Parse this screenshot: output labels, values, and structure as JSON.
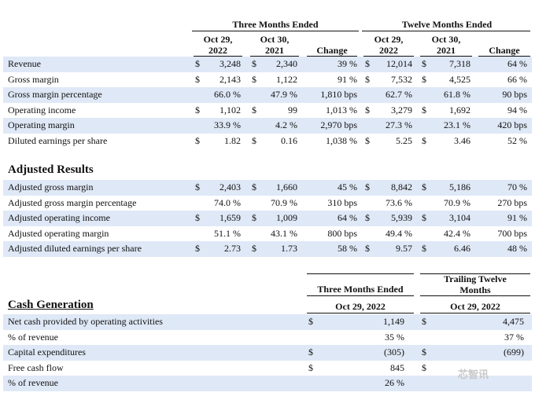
{
  "top_header": {
    "three_months": "Three Months Ended",
    "twelve_months": "Twelve Months Ended",
    "col_oct29_2022_a": [
      "Oct 29,",
      "2022"
    ],
    "col_oct30_2021_a": [
      "Oct 30,",
      "2021"
    ],
    "change": "Change",
    "col_oct29_2022_b": [
      "Oct 29,",
      "2022"
    ],
    "col_oct30_2021_b": [
      "Oct 30,",
      "2021"
    ]
  },
  "gaap_rows": [
    {
      "label": "Revenue",
      "q22_cur": "$",
      "q22": "3,248",
      "q21_cur": "$",
      "q21": "2,340",
      "qchg": "39 %",
      "y22_cur": "$",
      "y22": "12,014",
      "y21_cur": "$",
      "y21": "7,318",
      "ychg": "64 %",
      "shade": true
    },
    {
      "label": "Gross margin",
      "q22_cur": "$",
      "q22": "2,143",
      "q21_cur": "$",
      "q21": "1,122",
      "qchg": "91 %",
      "y22_cur": "$",
      "y22": "7,532",
      "y21_cur": "$",
      "y21": "4,525",
      "ychg": "66 %",
      "shade": false
    },
    {
      "label": "Gross margin percentage",
      "q22_cur": "",
      "q22": "66.0 %",
      "q21_cur": "",
      "q21": "47.9 %",
      "qchg": "1,810 bps",
      "y22_cur": "",
      "y22": "62.7 %",
      "y21_cur": "",
      "y21": "61.8 %",
      "ychg": "90 bps",
      "shade": true
    },
    {
      "label": "Operating income",
      "q22_cur": "$",
      "q22": "1,102",
      "q21_cur": "$",
      "q21": "99",
      "qchg": "1,013 %",
      "y22_cur": "$",
      "y22": "3,279",
      "y21_cur": "$",
      "y21": "1,692",
      "ychg": "94 %",
      "shade": false
    },
    {
      "label": "Operating margin",
      "q22_cur": "",
      "q22": "33.9 %",
      "q21_cur": "",
      "q21": "4.2 %",
      "qchg": "2,970 bps",
      "y22_cur": "",
      "y22": "27.3 %",
      "y21_cur": "",
      "y21": "23.1 %",
      "ychg": "420 bps",
      "shade": true
    },
    {
      "label": "Diluted earnings per share",
      "q22_cur": "$",
      "q22": "1.82",
      "q21_cur": "$",
      "q21": "0.16",
      "qchg": "1,038 %",
      "y22_cur": "$",
      "y22": "5.25",
      "y21_cur": "$",
      "y21": "3.46",
      "ychg": "52 %",
      "shade": false
    }
  ],
  "adjusted_title": "Adjusted Results",
  "adjusted_rows": [
    {
      "label": "Adjusted gross margin",
      "q22_cur": "$",
      "q22": "2,403",
      "q21_cur": "$",
      "q21": "1,660",
      "qchg": "45 %",
      "y22_cur": "$",
      "y22": "8,842",
      "y21_cur": "$",
      "y21": "5,186",
      "ychg": "70 %",
      "shade": true
    },
    {
      "label": "Adjusted gross margin percentage",
      "q22_cur": "",
      "q22": "74.0 %",
      "q21_cur": "",
      "q21": "70.9 %",
      "qchg": "310 bps",
      "y22_cur": "",
      "y22": "73.6 %",
      "y21_cur": "",
      "y21": "70.9 %",
      "ychg": "270 bps",
      "shade": false
    },
    {
      "label": "Adjusted operating income",
      "q22_cur": "$",
      "q22": "1,659",
      "q21_cur": "$",
      "q21": "1,009",
      "qchg": "64 %",
      "y22_cur": "$",
      "y22": "5,939",
      "y21_cur": "$",
      "y21": "3,104",
      "ychg": "91 %",
      "shade": true
    },
    {
      "label": "Adjusted operating margin",
      "q22_cur": "",
      "q22": "51.1 %",
      "q21_cur": "",
      "q21": "43.1 %",
      "qchg": "800 bps",
      "y22_cur": "",
      "y22": "49.4 %",
      "y21_cur": "",
      "y21": "42.4 %",
      "ychg": "700 bps",
      "shade": false
    },
    {
      "label": "Adjusted diluted earnings per share",
      "q22_cur": "$",
      "q22": "2.73",
      "q21_cur": "$",
      "q21": "1.73",
      "qchg": "58 %",
      "y22_cur": "$",
      "y22": "9.57",
      "y21_cur": "$",
      "y21": "6.46",
      "ychg": "48 %",
      "shade": true
    }
  ],
  "cash_header": {
    "three_months": "Three Months Ended",
    "ttm": [
      "Trailing Twelve",
      "Months"
    ],
    "date_a": "Oct 29, 2022",
    "date_b": "Oct 29, 2022"
  },
  "cash_title": "Cash Generation",
  "cash_rows": [
    {
      "label": "Net cash provided by operating activities",
      "a_cur": "$",
      "a": "1,149",
      "b_cur": "$",
      "b": "4,475",
      "shade": true
    },
    {
      "label": "% of revenue",
      "a_cur": "",
      "a": "35 %",
      "b_cur": "",
      "b": "37 %",
      "shade": false
    },
    {
      "label": "Capital expenditures",
      "a_cur": "$",
      "a": "(305)",
      "b_cur": "$",
      "b": "(699)",
      "shade": true
    },
    {
      "label": "Free cash flow",
      "a_cur": "$",
      "a": "845",
      "b_cur": "$",
      "b": "",
      "shade": false
    },
    {
      "label": "% of revenue",
      "a_cur": "",
      "a": "26 %",
      "b_cur": "",
      "b": "",
      "shade": true
    }
  ],
  "watermark": "芯智讯"
}
